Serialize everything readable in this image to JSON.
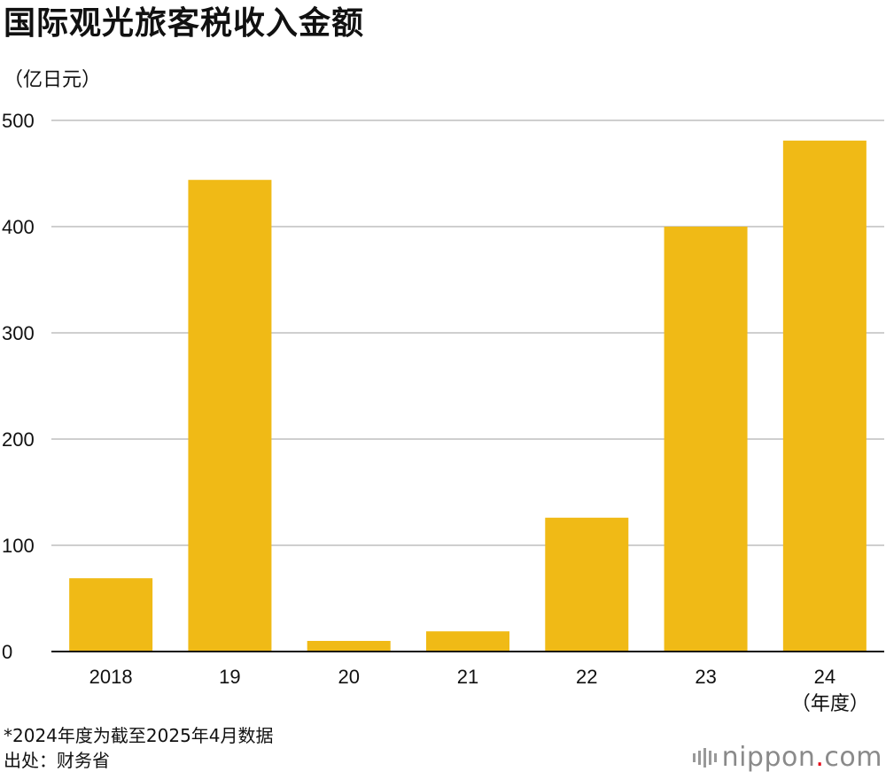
{
  "header": {
    "title": "国际观光旅客税收入金额",
    "unit": "（亿日元）"
  },
  "chart_data": {
    "type": "bar",
    "categories": [
      "2018",
      "19",
      "20",
      "21",
      "22",
      "23",
      "24"
    ],
    "values": [
      69,
      444,
      10,
      19,
      126,
      400,
      481
    ],
    "ylim": [
      0,
      500
    ],
    "yticks": [
      0,
      100,
      200,
      300,
      400,
      500
    ],
    "x_unit_note": "（年度）",
    "grid": true,
    "colors": {
      "bar": "#F0BA16",
      "grid": "#CFCFCF",
      "axis": "#111111"
    }
  },
  "footer": {
    "note": "*2024年度为截至2025年4月数据",
    "source": "出处：财务省",
    "logo_name": "nippon",
    "logo_dot": ".",
    "logo_tld": "com",
    "logo_icon": "nippon-bars-icon"
  }
}
